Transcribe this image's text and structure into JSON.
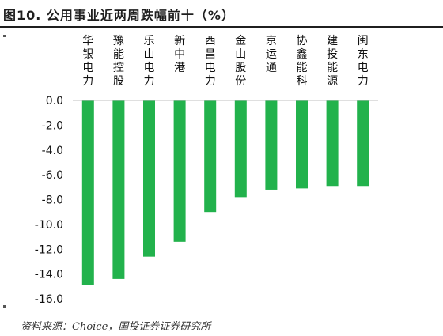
{
  "title": "图10. 公用事业近两周跌幅前十（%）",
  "source": "资料来源：Choice，国投证券证券研究所",
  "chart_data": {
    "type": "bar",
    "categories": [
      "华银电力",
      "豫能控股",
      "乐山电力",
      "新中港",
      "西昌电力",
      "金山股份",
      "京运通",
      "协鑫能科",
      "建投能源",
      "闽东电力"
    ],
    "values": [
      -14.9,
      -14.4,
      -12.6,
      -11.4,
      -9.0,
      -7.8,
      -7.2,
      -7.1,
      -6.9,
      -6.9
    ],
    "ylim": [
      -16.0,
      0.0
    ],
    "yticks": [
      "0.0",
      "-2.0",
      "-4.0",
      "-6.0",
      "-8.0",
      "-10.0",
      "-12.0",
      "-14.0",
      "-16.0"
    ],
    "bar_color": "#22b24c",
    "grid": false,
    "legend": "none"
  }
}
